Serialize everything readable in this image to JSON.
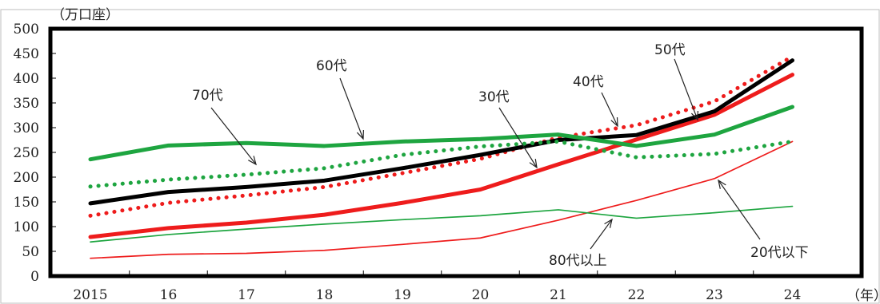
{
  "chart_data": {
    "type": "line",
    "y_unit_label": "（万口座）",
    "x_unit_label": "（年）",
    "categories": [
      "2015",
      "16",
      "17",
      "18",
      "19",
      "20",
      "21",
      "22",
      "23",
      "24"
    ],
    "ylim": [
      0,
      500
    ],
    "yticks": [
      "0",
      "50",
      "100",
      "150",
      "200",
      "250",
      "300",
      "350",
      "400",
      "450",
      "500"
    ],
    "grid": false,
    "series": [
      {
        "name": "20代以下",
        "color": "#ee1c1c",
        "style": "thin",
        "values": [
          36,
          44,
          46,
          52,
          64,
          77,
          113,
          153,
          197,
          272
        ]
      },
      {
        "name": "30代",
        "color": "#ee1c1c",
        "style": "thick",
        "values": [
          79,
          97,
          108,
          124,
          148,
          175,
          226,
          276,
          326,
          407
        ]
      },
      {
        "name": "40代",
        "color": "#ee1c1c",
        "style": "dotted",
        "values": [
          122,
          148,
          163,
          180,
          208,
          237,
          280,
          305,
          353,
          444
        ]
      },
      {
        "name": "50代",
        "color": "#000000",
        "style": "thick",
        "values": [
          147,
          170,
          180,
          193,
          218,
          245,
          275,
          285,
          333,
          436
        ]
      },
      {
        "name": "60代",
        "color": "#1ea540",
        "style": "thick",
        "values": [
          236,
          264,
          269,
          263,
          272,
          277,
          286,
          263,
          286,
          342
        ]
      },
      {
        "name": "70代",
        "color": "#1ea540",
        "style": "dotted",
        "values": [
          181,
          195,
          205,
          218,
          245,
          262,
          272,
          240,
          247,
          272
        ]
      },
      {
        "name": "80代以上",
        "color": "#1ea540",
        "style": "thin",
        "values": [
          69,
          84,
          95,
          105,
          114,
          122,
          134,
          117,
          128,
          141
        ]
      }
    ],
    "annotations": [
      {
        "label": "50代",
        "series": "50代"
      },
      {
        "label": "40代",
        "series": "40代"
      },
      {
        "label": "60代",
        "series": "60代"
      },
      {
        "label": "70代",
        "series": "70代"
      },
      {
        "label": "30代",
        "series": "30代"
      },
      {
        "label": "80代以上",
        "series": "80代以上"
      },
      {
        "label": "20代以下",
        "series": "20代以下"
      }
    ]
  }
}
